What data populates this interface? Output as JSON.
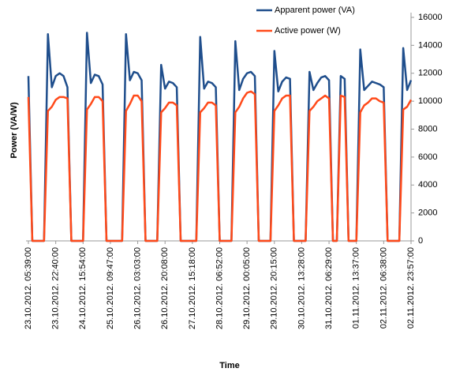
{
  "chart_data": {
    "type": "line",
    "x_label": "Time",
    "y_label": "Power (VA/W)",
    "categories": [
      "23.10.2012. 05:39:00",
      null,
      null,
      null,
      null,
      null,
      null,
      "23.10.2012. 22:40:00",
      null,
      null,
      null,
      null,
      null,
      null,
      "24.10.2012. 15:54:00",
      null,
      null,
      null,
      null,
      null,
      null,
      "25.10.2012. 09:47:00",
      null,
      null,
      null,
      null,
      null,
      null,
      "26.10.2012. 03:03:00",
      null,
      null,
      null,
      null,
      null,
      null,
      "26.10.2012. 20:08:00",
      null,
      null,
      null,
      null,
      null,
      null,
      "27.10.2012. 15:18:00",
      null,
      null,
      null,
      null,
      null,
      null,
      "28.10.2012. 06:52:00",
      null,
      null,
      null,
      null,
      null,
      null,
      "29.10.2012. 00:05:00",
      null,
      null,
      null,
      null,
      null,
      null,
      "29.10.2012. 20:15:00",
      null,
      null,
      null,
      null,
      null,
      null,
      "30.10.2012. 13:28:00",
      null,
      null,
      null,
      null,
      null,
      null,
      "31.10.2012. 06:29:00",
      null,
      null,
      null,
      null,
      null,
      null,
      "01.11.2012. 13:37:00",
      null,
      null,
      null,
      null,
      null,
      null,
      "02.11.2012. 06:38:00",
      null,
      null,
      null,
      null,
      null,
      null,
      "02.11.2012. 23:57:00"
    ],
    "series": [
      {
        "name": "Apparent power (VA)",
        "color": "#1f4e8c",
        "values": [
          11800,
          0,
          0,
          0,
          0,
          14800,
          11000,
          11800,
          12000,
          11800,
          11000,
          0,
          0,
          0,
          0,
          14900,
          11300,
          11900,
          11800,
          11200,
          0,
          0,
          0,
          0,
          0,
          14800,
          11500,
          12100,
          12000,
          11500,
          0,
          0,
          0,
          0,
          12600,
          10900,
          11400,
          11300,
          11000,
          0,
          0,
          0,
          0,
          0,
          14600,
          10900,
          11400,
          11300,
          11000,
          0,
          0,
          0,
          0,
          14300,
          10800,
          11600,
          12000,
          12100,
          11800,
          0,
          0,
          0,
          0,
          13600,
          10700,
          11400,
          11700,
          11600,
          0,
          0,
          0,
          0,
          12100,
          10800,
          11300,
          11700,
          11800,
          11500,
          0,
          0,
          11800,
          11600,
          0,
          0,
          0,
          13700,
          10800,
          11100,
          11400,
          11300,
          11200,
          11000,
          0,
          0,
          0,
          0,
          13800,
          10800,
          11500
        ]
      },
      {
        "name": "Active power (W)",
        "color": "#ff4a1a",
        "values": [
          10300,
          0,
          0,
          0,
          0,
          9300,
          9600,
          10100,
          10300,
          10300,
          10200,
          0,
          0,
          0,
          0,
          9400,
          9800,
          10300,
          10300,
          10000,
          0,
          0,
          0,
          0,
          0,
          9300,
          9800,
          10400,
          10400,
          10000,
          0,
          0,
          0,
          0,
          9200,
          9500,
          9900,
          9900,
          9700,
          0,
          0,
          0,
          0,
          0,
          9200,
          9500,
          9900,
          9900,
          9700,
          0,
          0,
          0,
          0,
          9200,
          9600,
          10200,
          10600,
          10700,
          10500,
          0,
          0,
          0,
          0,
          9300,
          9700,
          10200,
          10400,
          10400,
          0,
          0,
          0,
          0,
          9300,
          9600,
          10000,
          10200,
          10400,
          10200,
          0,
          0,
          10400,
          10300,
          0,
          0,
          0,
          9200,
          9700,
          9900,
          10200,
          10200,
          10000,
          9900,
          0,
          0,
          0,
          0,
          9400,
          9600,
          10100
        ]
      }
    ],
    "ylim": [
      0,
      16000
    ],
    "yticks": [
      0,
      2000,
      4000,
      6000,
      8000,
      10000,
      12000,
      14000,
      16000
    ],
    "y_axis_side": "right",
    "legend_position": "top-right",
    "grid": false
  }
}
